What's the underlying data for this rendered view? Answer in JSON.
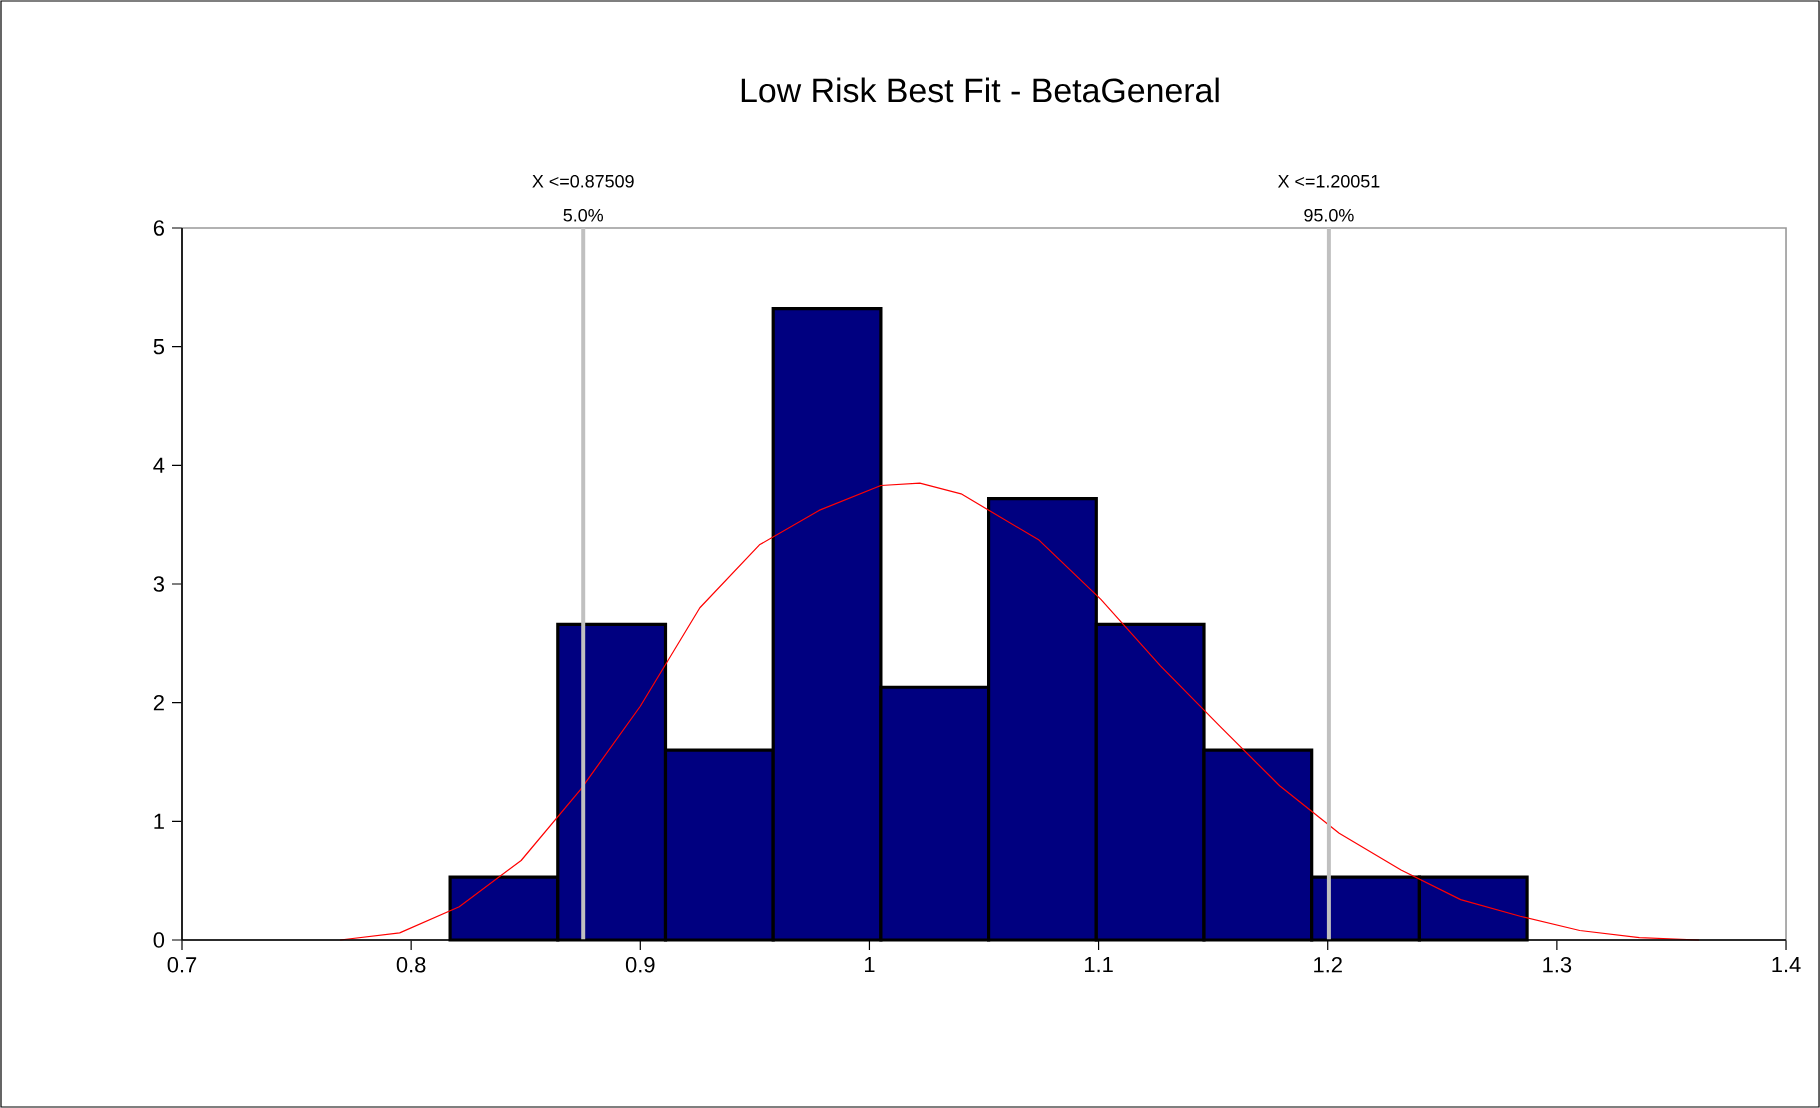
{
  "chart_data": {
    "type": "histogram",
    "title": "Low Risk Best Fit - BetaGeneral",
    "bins": [
      0.817,
      0.864,
      0.911,
      0.958,
      1.005,
      1.052,
      1.099,
      1.146,
      1.193,
      1.24,
      1.287
    ],
    "values": [
      0.53,
      2.66,
      1.6,
      5.32,
      2.13,
      3.72,
      2.66,
      1.6,
      0.53,
      0.53
    ],
    "color": "#000080",
    "series": [
      {
        "type": "line",
        "color": "#ff0000",
        "x": [
          0.769,
          0.795,
          0.821,
          0.848,
          0.874,
          0.9,
          0.926,
          0.952,
          0.978,
          1.005,
          1.022,
          1.04,
          1.074,
          1.101,
          1.127,
          1.153,
          1.179,
          1.205,
          1.232,
          1.258,
          1.284,
          1.31,
          1.336,
          1.362
        ],
        "values": [
          0,
          0.06,
          0.28,
          0.67,
          1.27,
          1.97,
          2.8,
          3.33,
          3.62,
          3.83,
          3.85,
          3.76,
          3.37,
          2.87,
          2.31,
          1.8,
          1.3,
          0.9,
          0.59,
          0.34,
          0.2,
          0.08,
          0.02,
          0
        ]
      }
    ],
    "xlim": [
      0.7,
      1.4
    ],
    "ylim": [
      0,
      6
    ],
    "xticks": [
      0.7,
      0.8,
      0.9,
      1,
      1.1,
      1.2,
      1.3,
      1.4
    ],
    "yticks": [
      0,
      1,
      2,
      3,
      4,
      5,
      6
    ],
    "ref_lines": [
      {
        "axis": "x",
        "value": 0.87509,
        "label": "X <=0.87509",
        "color": "#c0c0c0"
      },
      {
        "axis": "x",
        "value": 1.20051,
        "label": "X <=1.20051",
        "color": "#c0c0c0"
      }
    ],
    "annotations": [
      {
        "text": "5.0%",
        "x": 0.87509,
        "y": 6
      },
      {
        "text": "95.0%",
        "x": 1.20051,
        "y": 6
      }
    ],
    "grid": false
  }
}
